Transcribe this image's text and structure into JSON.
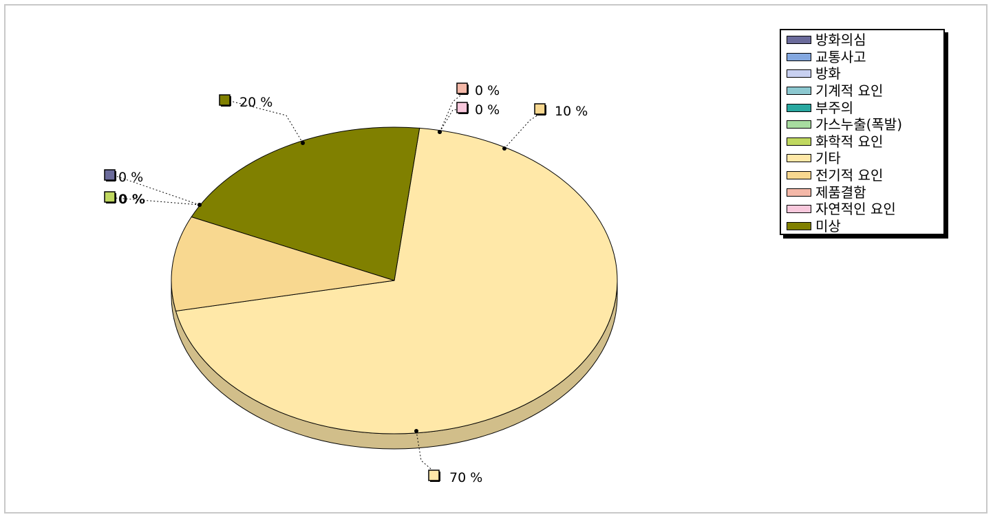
{
  "chart_data": {
    "type": "pie",
    "title": "",
    "categories": [
      "방화의심",
      "교통사고",
      "방화",
      "기계적 요인",
      "부주의",
      "가스누출(폭발)",
      "화학적 요인",
      "기타",
      "전기적 요인",
      "제품결함",
      "자연적인 요인",
      "미상"
    ],
    "values": [
      0,
      0,
      0,
      0,
      0,
      0,
      0,
      70,
      10,
      0,
      0,
      20
    ],
    "colors": [
      "#6b6b9b",
      "#84a8e0",
      "#c8d0f0",
      "#8cc8d0",
      "#28a8a0",
      "#a8dca0",
      "#c0d860",
      "#ffe8a8",
      "#f8d890",
      "#f4b8a8",
      "#f8c8dc",
      "#808000"
    ],
    "legend_position": "top-right",
    "data_labels": [
      {
        "text": "0 %",
        "series": "방화의심",
        "bold": false
      },
      {
        "text": "0 %",
        "series": "화학적 요인",
        "bold": true
      },
      {
        "text": "20 %",
        "series": "미상",
        "bold": false
      },
      {
        "text": "0 %",
        "series": "제품결함",
        "bold": false
      },
      {
        "text": "0 %",
        "series": "자연적인 요인",
        "bold": false
      },
      {
        "text": "10 %",
        "series": "전기적 요인",
        "bold": false
      },
      {
        "text": "70 %",
        "series": "기타",
        "bold": false
      }
    ]
  }
}
